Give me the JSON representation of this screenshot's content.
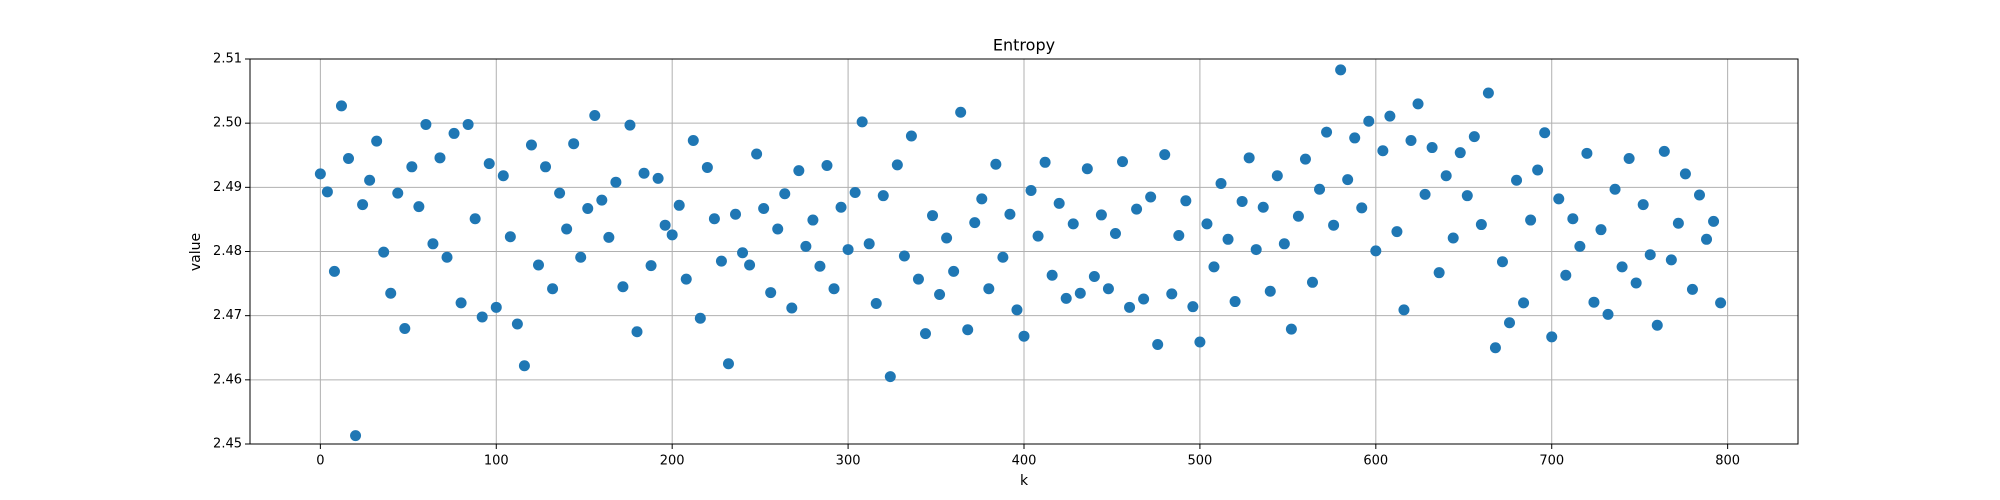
{
  "chart_data": {
    "type": "scatter",
    "title": "Entropy",
    "x_label": "k",
    "y_label": "value",
    "color": "#1f77b4",
    "grid": true,
    "xlim": [
      -40,
      840
    ],
    "ylim": [
      2.45,
      2.51
    ],
    "xticks": [
      0,
      100,
      200,
      300,
      400,
      500,
      600,
      700,
      800
    ],
    "yticks": [
      2.45,
      2.46,
      2.47,
      2.48,
      2.49,
      {
        "value": 2.5,
        "label": "2.50"
      },
      2.51
    ],
    "x": [
      0,
      4,
      8,
      12,
      16,
      20,
      24,
      28,
      32,
      36,
      40,
      44,
      48,
      52,
      56,
      60,
      64,
      68,
      72,
      76,
      80,
      84,
      88,
      92,
      96,
      100,
      104,
      108,
      112,
      116,
      120,
      124,
      128,
      132,
      136,
      140,
      144,
      148,
      152,
      156,
      160,
      164,
      168,
      172,
      176,
      180,
      184,
      188,
      192,
      196,
      200,
      204,
      208,
      212,
      216,
      220,
      224,
      228,
      232,
      236,
      240,
      244,
      248,
      252,
      256,
      260,
      264,
      268,
      272,
      276,
      280,
      284,
      288,
      292,
      296,
      300,
      304,
      308,
      312,
      316,
      320,
      324,
      328,
      332,
      336,
      340,
      344,
      348,
      352,
      356,
      360,
      364,
      368,
      372,
      376,
      380,
      384,
      388,
      392,
      396,
      400,
      404,
      408,
      412,
      416,
      420,
      424,
      428,
      432,
      436,
      440,
      444,
      448,
      452,
      456,
      460,
      464,
      468,
      472,
      476,
      480,
      484,
      488,
      492,
      496,
      500,
      504,
      508,
      512,
      516,
      520,
      524,
      528,
      532,
      536,
      540,
      544,
      548,
      552,
      556,
      560,
      564,
      568,
      572,
      576,
      580,
      584,
      588,
      592,
      596,
      600,
      604,
      608,
      612,
      616,
      620,
      624,
      628,
      632,
      636,
      640,
      644,
      648,
      652,
      656,
      660,
      664,
      668,
      672,
      676,
      680,
      684,
      688,
      692,
      696,
      700,
      704,
      708,
      712,
      716,
      720,
      724,
      728,
      732,
      736,
      740,
      744,
      748,
      752,
      756,
      760,
      764,
      768,
      772,
      776,
      780,
      784,
      788,
      792,
      796
    ],
    "values": [
      2.4921,
      2.4893,
      2.4769,
      2.5027,
      2.4945,
      2.4513,
      2.4873,
      2.4911,
      2.4972,
      2.4799,
      2.4735,
      2.4891,
      2.468,
      2.4932,
      2.487,
      2.4998,
      2.4812,
      2.4946,
      2.4791,
      2.4984,
      2.472,
      2.4998,
      2.4851,
      2.4698,
      2.4937,
      2.4713,
      2.4918,
      2.4823,
      2.4687,
      2.4622,
      2.4966,
      2.4779,
      2.4932,
      2.4742,
      2.4891,
      2.4835,
      2.4968,
      2.4791,
      2.4867,
      2.5012,
      2.488,
      2.4822,
      2.4908,
      2.4745,
      2.4997,
      2.4675,
      2.4922,
      2.4778,
      2.4914,
      2.4841,
      2.4826,
      2.4872,
      2.4757,
      2.4973,
      2.4696,
      2.4931,
      2.4851,
      2.4785,
      2.4625,
      2.4858,
      2.4798,
      2.4779,
      2.4952,
      2.4867,
      2.4736,
      2.4835,
      2.489,
      2.4712,
      2.4926,
      2.4808,
      2.4849,
      2.4777,
      2.4934,
      2.4742,
      2.4869,
      2.4803,
      2.4892,
      2.5002,
      2.4812,
      2.4719,
      2.4887,
      2.4605,
      2.4935,
      2.4793,
      2.498,
      2.4757,
      2.4672,
      2.4856,
      2.4733,
      2.4821,
      2.4769,
      2.5017,
      2.4678,
      2.4845,
      2.4882,
      2.4742,
      2.4936,
      2.4791,
      2.4858,
      2.4709,
      2.4668,
      2.4895,
      2.4824,
      2.4939,
      2.4763,
      2.4875,
      2.4727,
      2.4843,
      2.4735,
      2.4929,
      2.4761,
      2.4857,
      2.4742,
      2.4828,
      2.494,
      2.4713,
      2.4866,
      2.4726,
      2.4885,
      2.4655,
      2.4951,
      2.4734,
      2.4825,
      2.4879,
      2.4714,
      2.4659,
      2.4843,
      2.4776,
      2.4906,
      2.4819,
      2.4722,
      2.4878,
      2.4946,
      2.4803,
      2.4869,
      2.4738,
      2.4918,
      2.4812,
      2.4679,
      2.4855,
      2.4944,
      2.4752,
      2.4897,
      2.4986,
      2.4841,
      2.5083,
      2.4912,
      2.4977,
      2.4868,
      2.5003,
      2.4801,
      2.4957,
      2.5011,
      2.4831,
      2.4709,
      2.4973,
      2.503,
      2.4889,
      2.4962,
      2.4767,
      2.4918,
      2.4821,
      2.4954,
      2.4887,
      2.4979,
      2.4842,
      2.5047,
      2.465,
      2.4784,
      2.4689,
      2.4911,
      2.472,
      2.4849,
      2.4927,
      2.4985,
      2.4667,
      2.4882,
      2.4763,
      2.4851,
      2.4808,
      2.4953,
      2.4721,
      2.4834,
      2.4702,
      2.4897,
      2.4776,
      2.4945,
      2.4751,
      2.4873,
      2.4795,
      2.4685,
      2.4956,
      2.4787,
      2.4844,
      2.4921,
      2.4741,
      2.4888,
      2.4819,
      2.4847,
      2.472
    ]
  }
}
